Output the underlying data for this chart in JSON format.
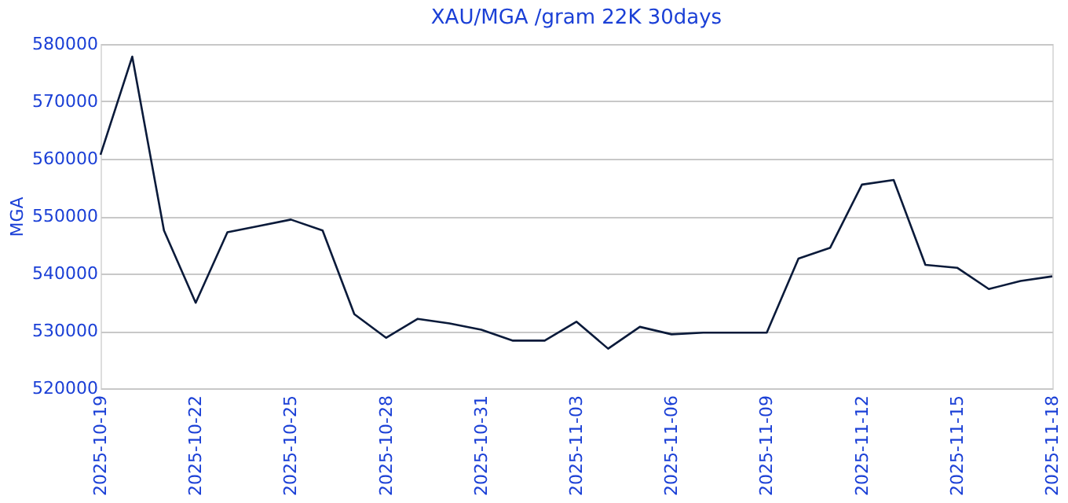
{
  "chart_data": {
    "type": "line",
    "title": "XAU/MGA /gram 22K 30days",
    "ylabel": "MGA",
    "x": [
      "2025-10-19",
      "2025-10-20",
      "2025-10-21",
      "2025-10-22",
      "2025-10-23",
      "2025-10-24",
      "2025-10-25",
      "2025-10-26",
      "2025-10-27",
      "2025-10-28",
      "2025-10-29",
      "2025-10-30",
      "2025-10-31",
      "2025-11-01",
      "2025-11-02",
      "2025-11-03",
      "2025-11-04",
      "2025-11-05",
      "2025-11-06",
      "2025-11-07",
      "2025-11-08",
      "2025-11-09",
      "2025-11-10",
      "2025-11-11",
      "2025-11-12",
      "2025-11-13",
      "2025-11-14",
      "2025-11-15",
      "2025-11-16",
      "2025-11-17",
      "2025-11-18"
    ],
    "series": [
      {
        "color": "#0a1a3a",
        "values": [
          560700,
          577800,
          547500,
          534900,
          547200,
          548300,
          549400,
          547500,
          532900,
          528800,
          532100,
          531300,
          530200,
          528300,
          528300,
          531600,
          526900,
          530700,
          529400,
          529700,
          529700,
          529700,
          542600,
          544500,
          555500,
          556300,
          541500,
          541000,
          537300,
          538700,
          539500
        ]
      }
    ],
    "xlim": [
      "2025-10-19",
      "2025-11-18"
    ],
    "xticks": [
      "2025-10-19",
      "2025-10-22",
      "2025-10-25",
      "2025-10-28",
      "2025-10-31",
      "2025-11-03",
      "2025-11-06",
      "2025-11-09",
      "2025-11-12",
      "2025-11-15",
      "2025-11-18"
    ],
    "ylim": [
      520000,
      580000
    ],
    "yticks": [
      520000,
      530000,
      540000,
      550000,
      560000,
      570000,
      580000
    ],
    "grid": "y",
    "legend": false,
    "marker": "none",
    "line_style": "solid"
  }
}
